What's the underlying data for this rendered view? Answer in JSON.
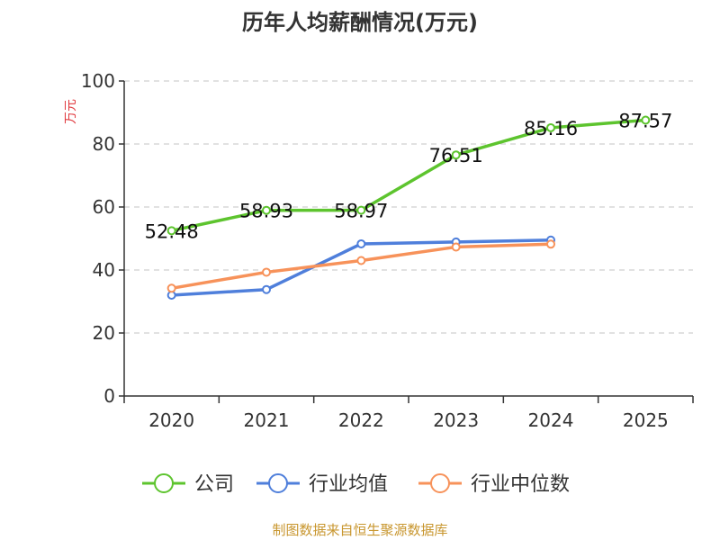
{
  "chart_data": {
    "type": "line",
    "title": "历年人均薪酬情况(万元)",
    "ylabel": "万元",
    "xlabel": "",
    "categories": [
      "2020",
      "2021",
      "2022",
      "2023",
      "2024",
      "2025"
    ],
    "ylim": [
      0,
      100
    ],
    "yticks": [
      0,
      20,
      40,
      60,
      80,
      100
    ],
    "grid": true,
    "legend_position": "bottom",
    "series": [
      {
        "name": "公司",
        "color": "#5dc42e",
        "values": [
          52.48,
          58.93,
          58.97,
          76.51,
          85.16,
          87.57
        ],
        "labels": [
          "52.48",
          "58.93",
          "58.97",
          "76.51",
          "85.16",
          "87.57"
        ]
      },
      {
        "name": "行业均值",
        "color": "#4f7fdb",
        "values": [
          32.0,
          33.8,
          48.3,
          48.9,
          49.5,
          null
        ]
      },
      {
        "name": "行业中位数",
        "color": "#f7925a",
        "values": [
          34.2,
          39.3,
          43.0,
          47.3,
          48.2,
          null
        ]
      }
    ]
  },
  "footer": {
    "source": "制图数据来自恒生聚源数据库"
  }
}
